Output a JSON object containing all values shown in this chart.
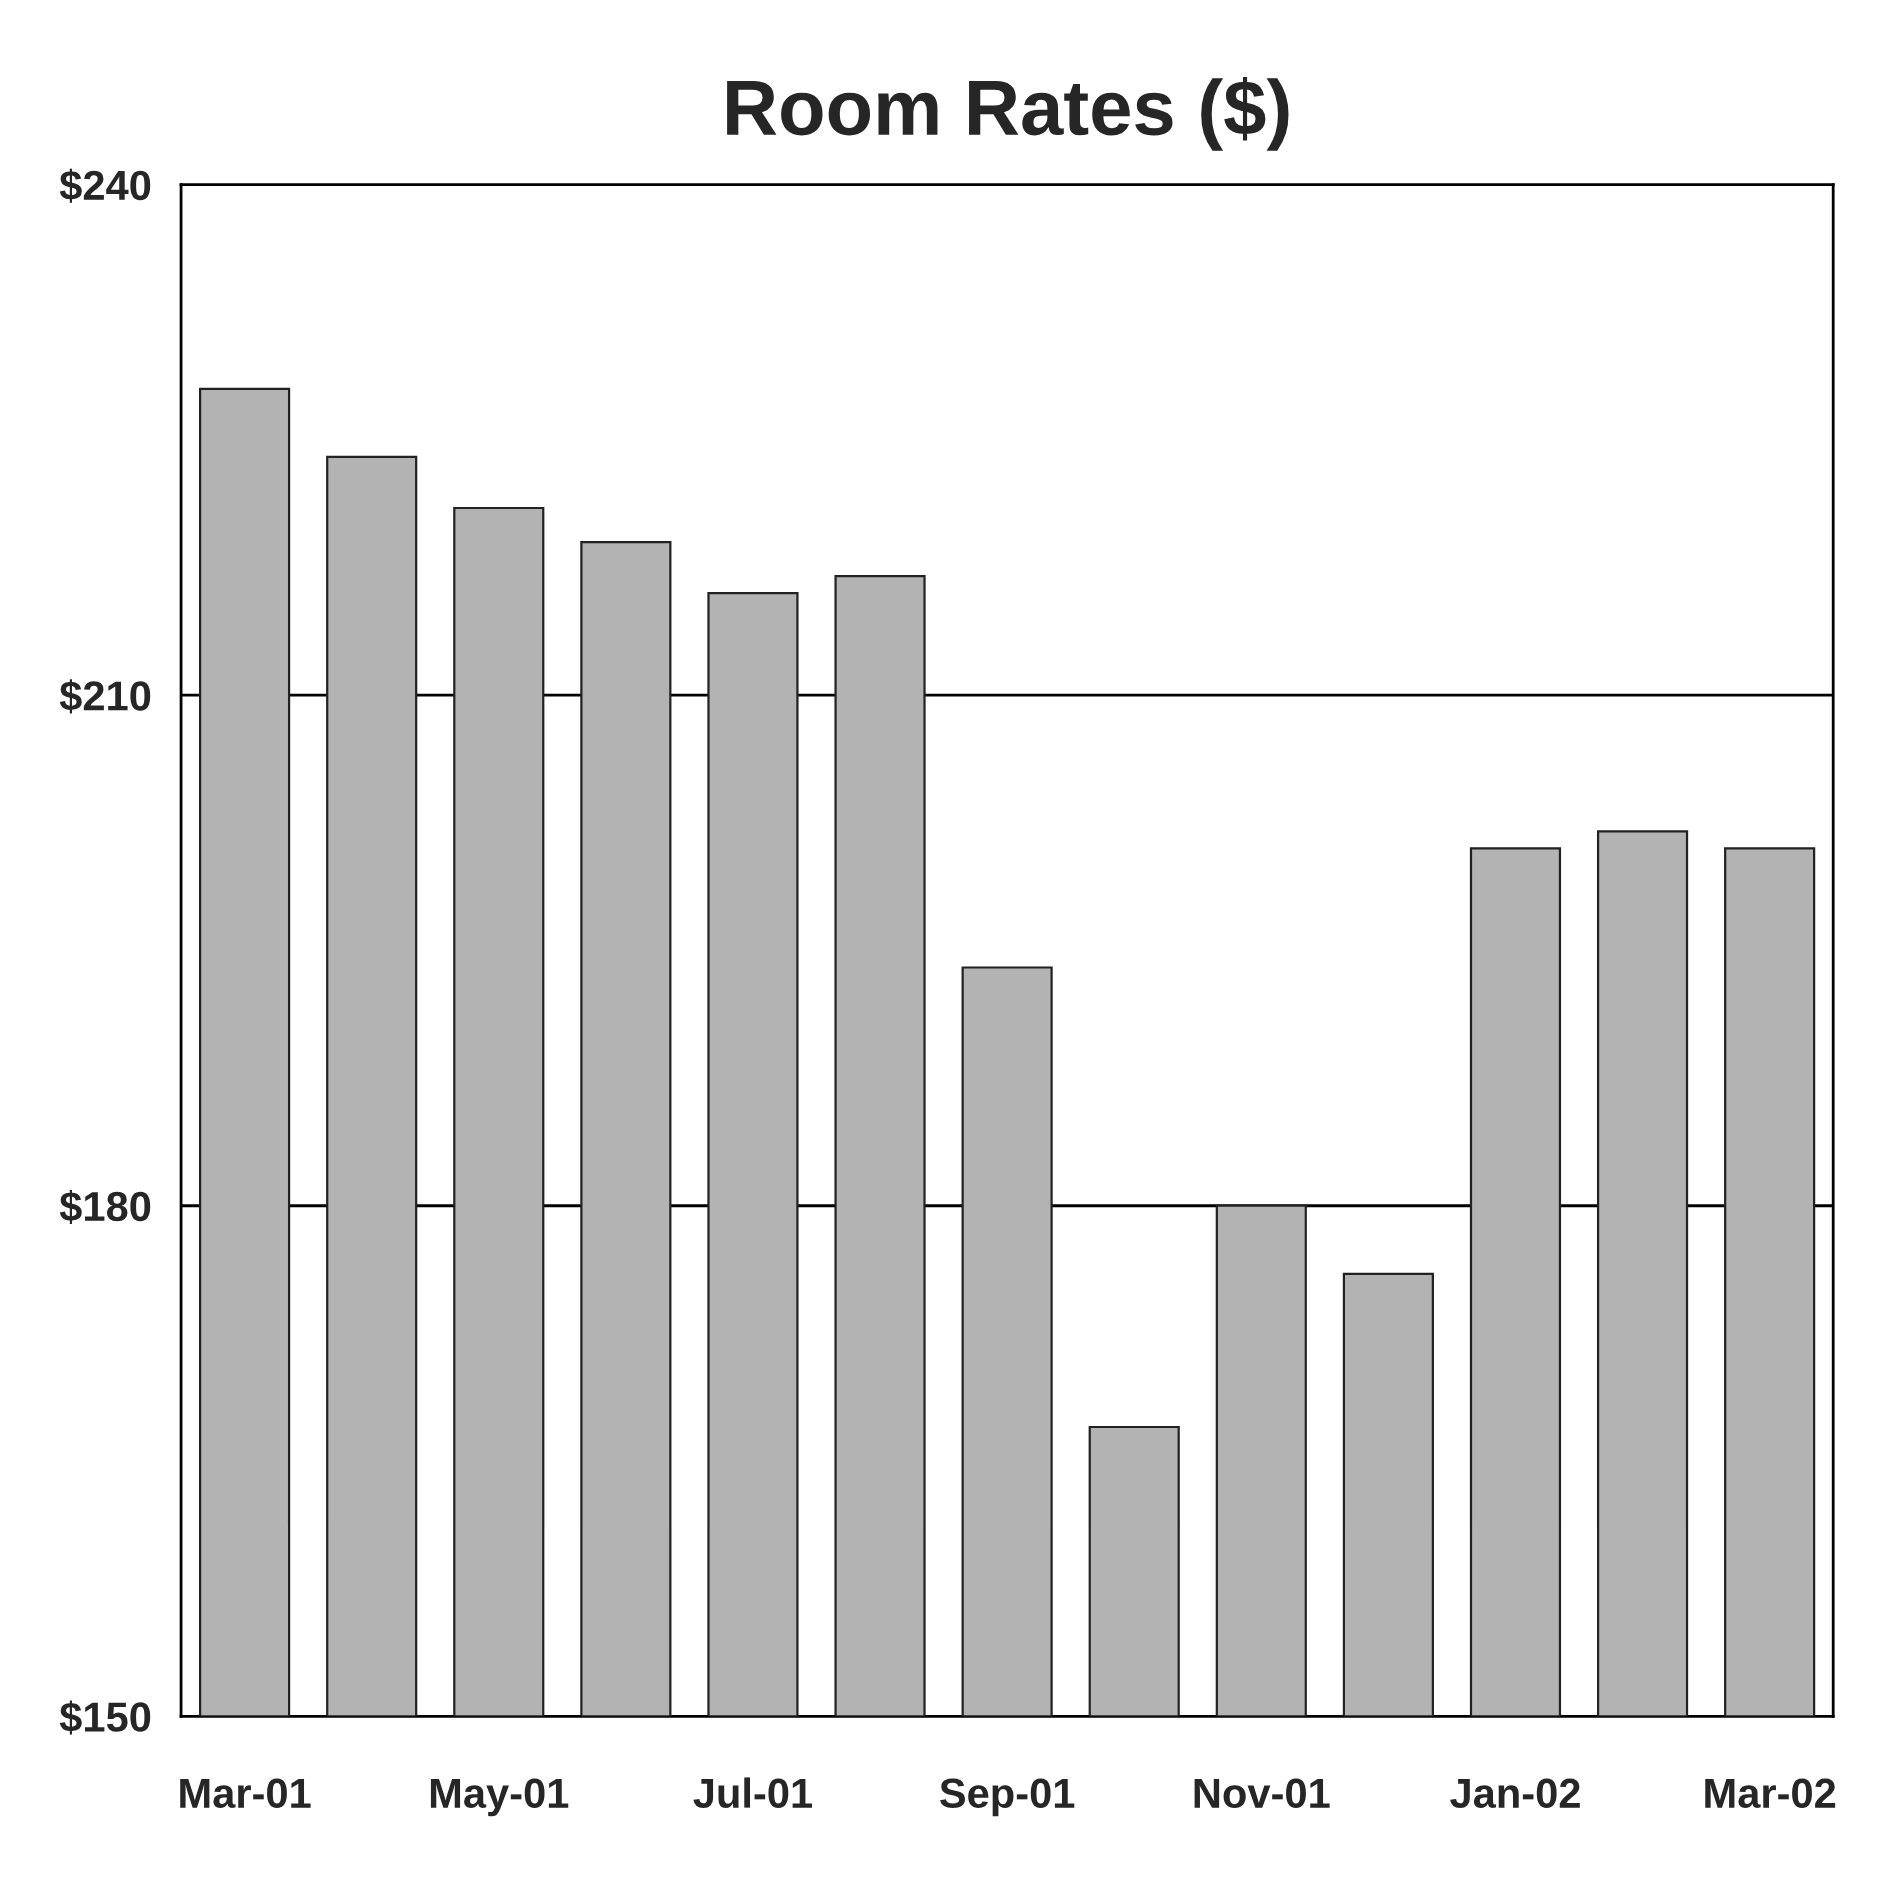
{
  "chart_data": {
    "type": "bar",
    "title": "Room Rates ($)",
    "categories": [
      "Mar-01",
      null,
      "May-01",
      null,
      "Jul-01",
      null,
      "Sep-01",
      null,
      "Nov-01",
      null,
      "Jan-02",
      null,
      "Mar-02"
    ],
    "values": [
      228,
      224,
      221,
      219,
      216,
      217,
      194,
      167,
      180,
      176,
      201,
      202,
      201
    ],
    "color": "#b3b3b3",
    "ylim": [
      150,
      240
    ],
    "yticks": [
      {
        "value": 150,
        "label": "$150"
      },
      {
        "value": 180,
        "label": "$180"
      },
      {
        "value": 210,
        "label": "$210"
      },
      {
        "value": 240,
        "label": "$240"
      }
    ],
    "grid": "y"
  }
}
